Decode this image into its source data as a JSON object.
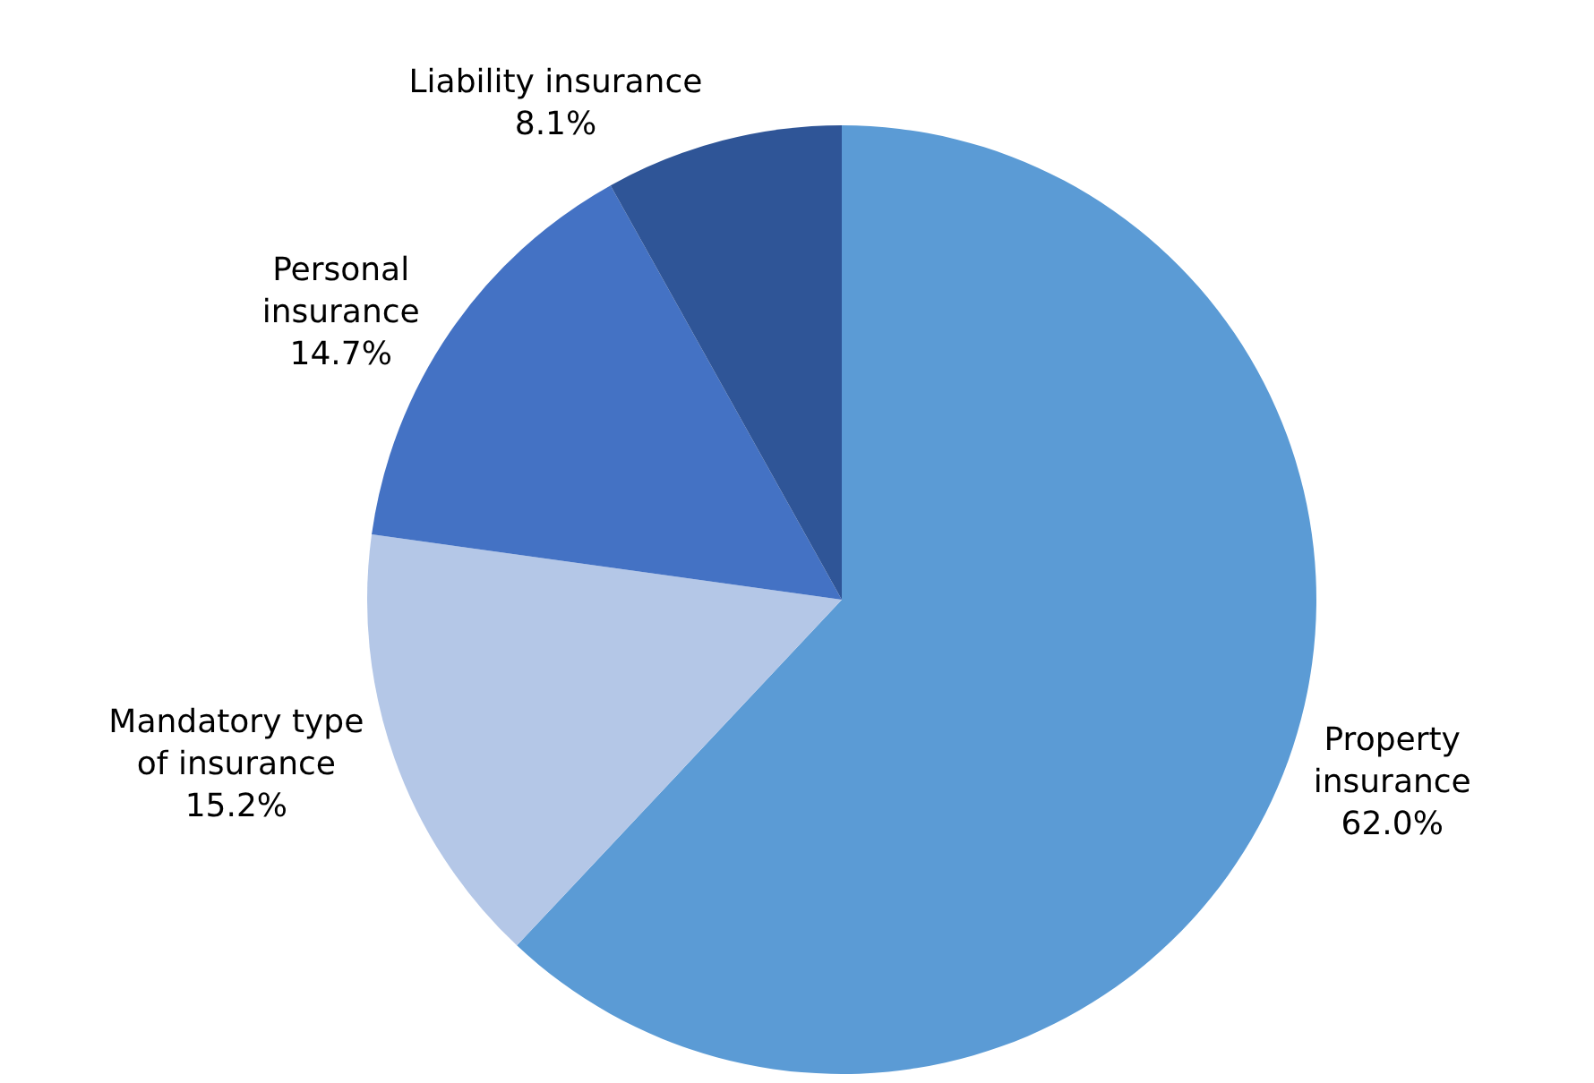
{
  "chart_data": {
    "type": "pie",
    "categories": [
      "Property\ninsurance",
      "Mandatory type\nof insurance",
      "Personal\ninsurance",
      "Liability insurance"
    ],
    "values": [
      62.0,
      15.2,
      14.7,
      8.1
    ],
    "value_labels": [
      "62.0%",
      "15.2%",
      "14.7%",
      "8.1%"
    ],
    "colors": [
      "#5b9bd5",
      "#b4c7e7",
      "#4472c4",
      "#2f5597"
    ],
    "legend": false
  }
}
